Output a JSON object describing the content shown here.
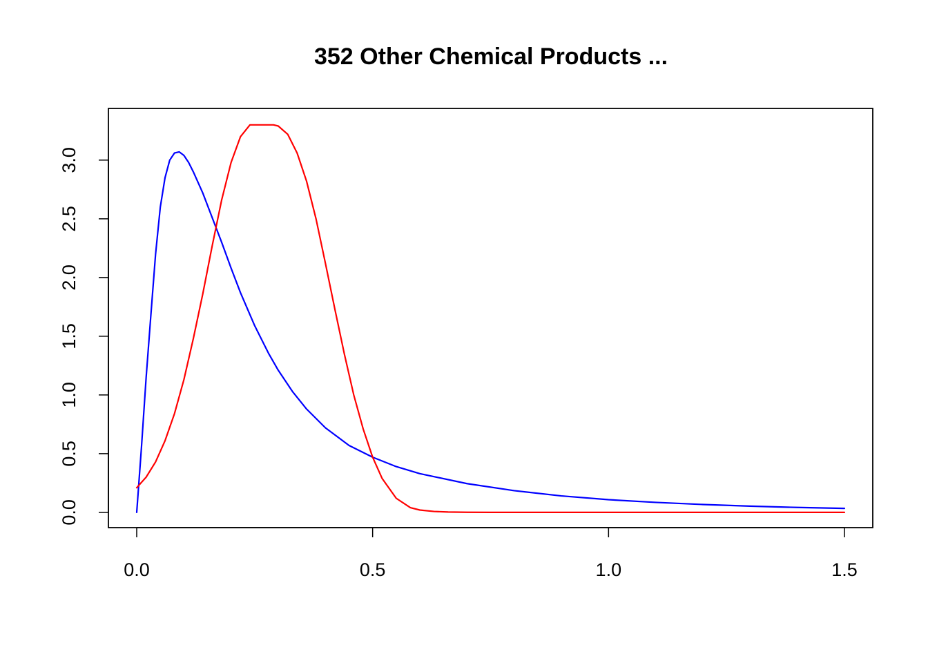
{
  "chart_data": {
    "type": "line",
    "title": "352 Other Chemical Products ...",
    "xlabel": "",
    "ylabel": "",
    "xlim": [
      -0.06,
      1.56
    ],
    "ylim": [
      -0.13,
      3.44
    ],
    "x_ticks": [
      0.0,
      0.5,
      1.0,
      1.5
    ],
    "x_tick_labels": [
      "0.0",
      "0.5",
      "1.0",
      "1.5"
    ],
    "y_ticks": [
      0.0,
      0.5,
      1.0,
      1.5,
      2.0,
      2.5,
      3.0
    ],
    "y_tick_labels": [
      "0.0",
      "0.5",
      "1.0",
      "1.5",
      "2.0",
      "2.5",
      "3.0"
    ],
    "grid": false,
    "legend": "none",
    "colors": {
      "series_1": "#0000ff",
      "series_2": "#ff0000"
    },
    "series": [
      {
        "color": "#0000ff",
        "x": [
          0.0,
          0.01,
          0.02,
          0.03,
          0.04,
          0.05,
          0.06,
          0.07,
          0.08,
          0.09,
          0.1,
          0.11,
          0.12,
          0.14,
          0.16,
          0.18,
          0.2,
          0.22,
          0.25,
          0.28,
          0.3,
          0.33,
          0.36,
          0.4,
          0.45,
          0.5,
          0.55,
          0.6,
          0.7,
          0.8,
          0.9,
          1.0,
          1.1,
          1.2,
          1.3,
          1.4,
          1.5
        ],
        "y": [
          0.0,
          0.55,
          1.15,
          1.68,
          2.2,
          2.6,
          2.85,
          3.0,
          3.06,
          3.07,
          3.04,
          2.98,
          2.9,
          2.72,
          2.51,
          2.3,
          2.08,
          1.87,
          1.59,
          1.35,
          1.21,
          1.03,
          0.88,
          0.72,
          0.57,
          0.47,
          0.39,
          0.33,
          0.245,
          0.185,
          0.14,
          0.108,
          0.085,
          0.067,
          0.053,
          0.042,
          0.034
        ]
      },
      {
        "color": "#ff0000",
        "x": [
          0.0,
          0.02,
          0.04,
          0.06,
          0.08,
          0.1,
          0.12,
          0.14,
          0.16,
          0.18,
          0.2,
          0.22,
          0.24,
          0.26,
          0.28,
          0.29,
          0.3,
          0.32,
          0.34,
          0.36,
          0.38,
          0.4,
          0.42,
          0.44,
          0.46,
          0.48,
          0.5,
          0.52,
          0.55,
          0.58,
          0.6,
          0.63,
          0.66,
          0.7,
          0.75,
          0.8,
          0.9,
          1.0,
          1.2,
          1.5
        ],
        "y": [
          0.21,
          0.3,
          0.43,
          0.61,
          0.84,
          1.13,
          1.48,
          1.86,
          2.27,
          2.66,
          2.98,
          3.2,
          3.3,
          3.3,
          3.3,
          3.3,
          3.29,
          3.22,
          3.06,
          2.82,
          2.5,
          2.12,
          1.73,
          1.35,
          1.0,
          0.71,
          0.47,
          0.29,
          0.12,
          0.04,
          0.02,
          0.008,
          0.003,
          0.001,
          0.0,
          0.0,
          0.0,
          0.0,
          0.0,
          0.0
        ]
      }
    ]
  }
}
